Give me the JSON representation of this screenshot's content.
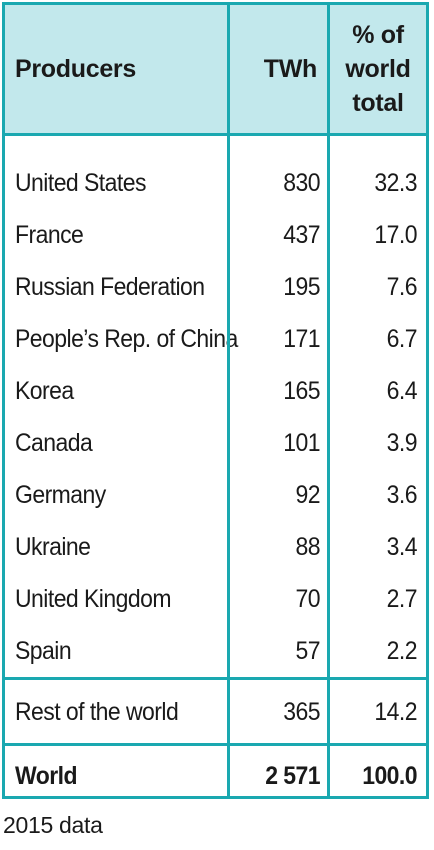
{
  "chart_data": {
    "type": "table",
    "columns": [
      "Producers",
      "TWh",
      "% of world total"
    ],
    "rows": [
      {
        "producer": "United States",
        "twh": "830",
        "pct": "32.3"
      },
      {
        "producer": "France",
        "twh": "437",
        "pct": "17.0"
      },
      {
        "producer": "Russian Federation",
        "twh": "195",
        "pct": "7.6"
      },
      {
        "producer": "People’s Rep. of China",
        "twh": "171",
        "pct": "6.7"
      },
      {
        "producer": "Korea",
        "twh": "165",
        "pct": "6.4"
      },
      {
        "producer": "Canada",
        "twh": "101",
        "pct": "3.9"
      },
      {
        "producer": "Germany",
        "twh": "92",
        "pct": "3.6"
      },
      {
        "producer": "Ukraine",
        "twh": "88",
        "pct": "3.4"
      },
      {
        "producer": "United Kingdom",
        "twh": "70",
        "pct": "2.7"
      },
      {
        "producer": "Spain",
        "twh": "57",
        "pct": "2.2"
      }
    ],
    "rest": {
      "producer": "Rest of the world",
      "twh": "365",
      "pct": "14.2"
    },
    "total": {
      "producer": "World",
      "twh": "2 571",
      "pct": "100.0"
    }
  },
  "header": {
    "producers": "Producers",
    "twh": "TWh",
    "pct_line1": "% of",
    "pct_line2": "world",
    "pct_line3": "total"
  },
  "note": "2015 data",
  "colors": {
    "border": "#1aa8b0",
    "header_bg": "#c2e8ec"
  }
}
